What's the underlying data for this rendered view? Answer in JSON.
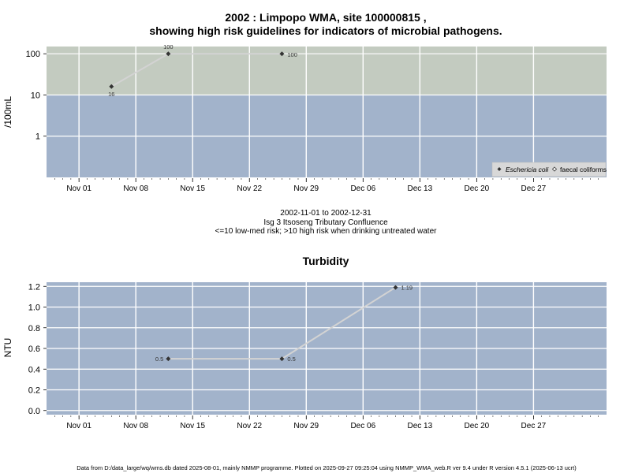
{
  "footer": "Data from D:/data_large/wq/wms.db dated 2025-08-01, mainly NMMP programme. Plotted on 2025-09-27 09:25:04 using NMMP_WMA_web.R ver 9.4 under R version 4.5.1 (2025-06-13 ucrt)",
  "colors": {
    "panel": "#a2b3cb",
    "high_risk_band": "#c3cbc0",
    "grid": "#ffffff",
    "line": "#d3d3d3",
    "marker": "#333333"
  },
  "chart_data": [
    {
      "type": "line",
      "title_lines": [
        "2002 : Limpopo WMA, site 100000815 ,",
        "showing high risk guidelines for indicators of microbial pathogens."
      ],
      "ylabel": "/100mL",
      "y_scale": "log",
      "yticks": [
        1,
        10,
        100
      ],
      "ylim": [
        0.1,
        150
      ],
      "xlim": [
        "2002-10-28",
        "2003-01-05"
      ],
      "x_tick_dates": [
        "2002-11-01",
        "2002-11-08",
        "2002-11-15",
        "2002-11-22",
        "2002-11-29",
        "2002-12-06",
        "2002-12-13",
        "2002-12-20",
        "2002-12-27"
      ],
      "x_tick_labels": [
        "Nov 01",
        "Nov 08",
        "Nov 15",
        "Nov 22",
        "Nov 29",
        "Dec 06",
        "Dec 13",
        "Dec 20",
        "Dec 27"
      ],
      "high_risk_threshold": 10,
      "subtitle_lines": [
        "2002-11-01 to 2002-12-31",
        "Isg 3 Itsoseng Tributary Confluence",
        "<=10 low-med risk; >10 high risk when drinking untreated water"
      ],
      "legend": {
        "placement": "bottom-right",
        "entries": [
          "Eschericia coli",
          "faecal coliforms"
        ]
      },
      "series": [
        {
          "name": "Eschericia coli",
          "marker": "filled-diamond",
          "x": [
            "2002-11-05",
            "2002-11-12",
            "2002-11-26"
          ],
          "y": [
            16,
            100,
            100
          ],
          "labels": [
            "16",
            "100",
            "100"
          ],
          "connected": [
            [
              0,
              1
            ],
            [
              1,
              2
            ]
          ]
        }
      ]
    },
    {
      "type": "line",
      "title": "Turbidity",
      "ylabel": "NTU",
      "yticks": [
        0,
        0.2,
        0.4,
        0.6,
        0.8,
        1,
        1.2
      ],
      "ytick_labels": [
        "0.0",
        "0.2",
        "0.4",
        "0.6",
        "0.8",
        "1.0",
        "1.2"
      ],
      "ylim": [
        -0.04,
        1.24
      ],
      "xlim": [
        "2002-10-28",
        "2003-01-05"
      ],
      "x_tick_dates": [
        "2002-11-01",
        "2002-11-08",
        "2002-11-15",
        "2002-11-22",
        "2002-11-29",
        "2002-12-06",
        "2002-12-13",
        "2002-12-20",
        "2002-12-27"
      ],
      "x_tick_labels": [
        "Nov 01",
        "Nov 08",
        "Nov 15",
        "Nov 22",
        "Nov 29",
        "Dec 06",
        "Dec 13",
        "Dec 20",
        "Dec 27"
      ],
      "series": [
        {
          "name": "",
          "marker": "filled-diamond",
          "x": [
            "2002-11-12",
            "2002-11-26",
            "2002-12-10"
          ],
          "y": [
            0.5,
            0.5,
            1.19
          ],
          "labels": [
            "0.5",
            "0.5",
            "1.19"
          ],
          "connected": [
            [
              0,
              1
            ],
            [
              1,
              2
            ]
          ]
        }
      ]
    }
  ]
}
